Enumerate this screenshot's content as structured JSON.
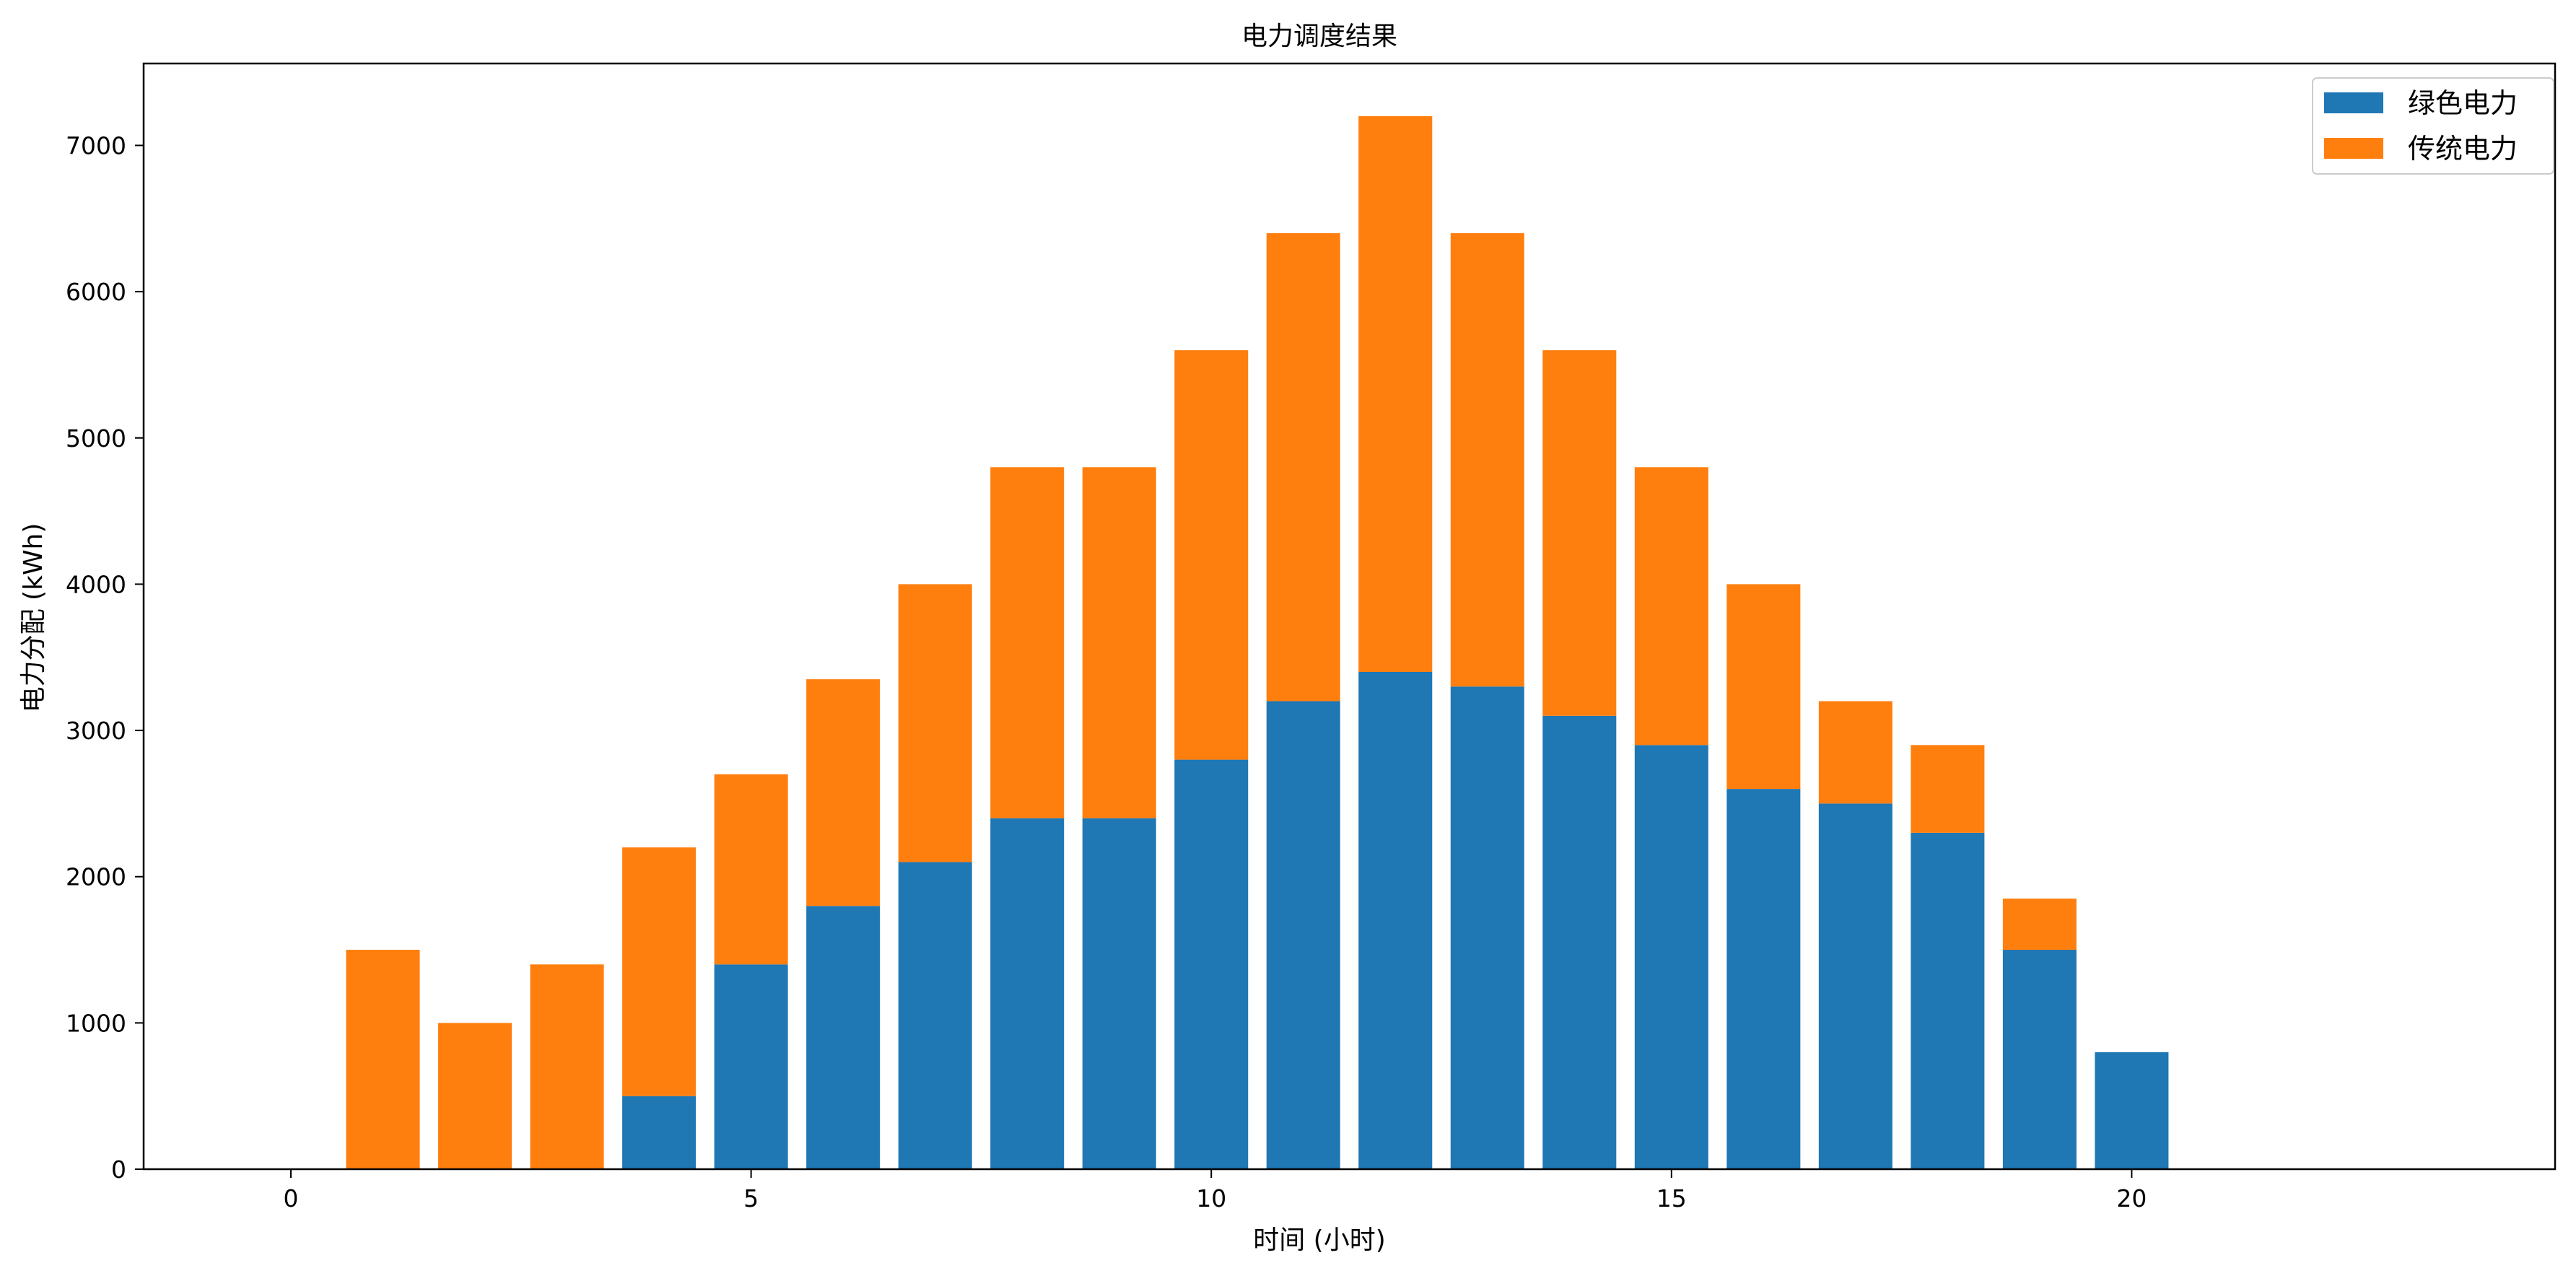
{
  "chart_data": {
    "type": "bar",
    "stacked": true,
    "title": "电力调度结果",
    "xlabel": "时间 (小时)",
    "ylabel": "电力分配 (kWh)",
    "x": [
      0,
      1,
      2,
      3,
      4,
      5,
      6,
      7,
      8,
      9,
      10,
      11,
      12,
      13,
      14,
      15,
      16,
      17,
      18,
      19,
      20,
      21,
      22,
      23
    ],
    "series": [
      {
        "name": "绿色电力",
        "color": "#1f77b4",
        "values": [
          0,
          0,
          0,
          0,
          500,
          1400,
          1800,
          2100,
          2400,
          2400,
          2800,
          3200,
          3400,
          3300,
          3100,
          2900,
          2600,
          2500,
          2300,
          1500,
          800,
          0,
          0,
          0
        ]
      },
      {
        "name": "传统电力",
        "color": "#ff7f0e",
        "values": [
          0,
          1500,
          1000,
          1400,
          1700,
          1300,
          1550,
          1900,
          2400,
          2400,
          2800,
          3200,
          3800,
          3100,
          2500,
          1900,
          1400,
          700,
          600,
          350,
          0,
          0,
          0,
          0
        ]
      }
    ],
    "xlim": [
      -1.6,
      24.6
    ],
    "ylim": [
      0,
      7560
    ],
    "xticks": [
      0,
      5,
      10,
      15,
      20
    ],
    "xtick_labels": [
      "0",
      "5",
      "10",
      "15",
      "20"
    ],
    "yticks": [
      0,
      1000,
      2000,
      3000,
      4000,
      5000,
      6000,
      7000
    ],
    "ytick_labels": [
      "0",
      "1000",
      "2000",
      "3000",
      "4000",
      "5000",
      "6000",
      "7000"
    ],
    "grid": false,
    "legend": "top-right"
  }
}
